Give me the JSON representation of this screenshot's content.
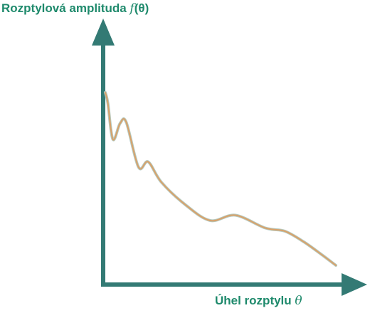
{
  "chart_data": {
    "type": "line",
    "title": "",
    "ylabel_parts": [
      "Rozptylová amplituda ",
      "f",
      "(θ)"
    ],
    "xlabel_parts": [
      "Úhel rozptylu ",
      "θ"
    ],
    "xlim": [
      0,
      1
    ],
    "ylim": [
      0,
      1
    ],
    "grid": false,
    "axis_color": "#337a74",
    "label_color": "#1f8a6c",
    "curve_color": "#d9a169",
    "series": [
      {
        "x": [
          0.0,
          0.011,
          0.033,
          0.064,
          0.091,
          0.144,
          0.186,
          0.243,
          0.346,
          0.455,
          0.564,
          0.694,
          0.779,
          0.861,
          0.939,
          1.0
        ],
        "y": [
          0.9,
          0.85,
          0.68,
          0.755,
          0.76,
          0.55,
          0.575,
          0.48,
          0.375,
          0.3,
          0.325,
          0.265,
          0.25,
          0.2,
          0.14,
          0.09
        ]
      }
    ]
  }
}
